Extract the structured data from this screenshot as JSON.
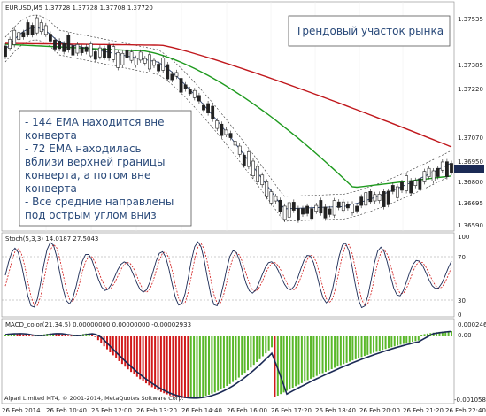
{
  "main": {
    "header": "EURUSD,M5  1.37728 1.37728 1.37708 1.37720",
    "annotation_top": "Трендовый участок рынка",
    "annotation_lines": [
      "- 144 EMA находится вне",
      "конверта",
      "- 72 EMA находилась",
      "вблизи верхней границы",
      "конверта, а потом вне",
      "конверта",
      "- Все средние направлены",
      "под острым углом вниз"
    ],
    "price_ticks": [
      "1.37535",
      "1.37385",
      "1.37220",
      "1.37070",
      "1.36950",
      "1.36800",
      "1.36695",
      "1.36590"
    ]
  },
  "stoch": {
    "header": "Stoch(5,3,3) 14.0187 27.5043",
    "ticks": [
      "100",
      "70",
      "30",
      "0"
    ]
  },
  "macd": {
    "header": "MACD_color(21,34,5) 0.00000000 0.00000000 -0.00002933",
    "ticks": [
      "0.000246",
      "0.00",
      "-0.001058"
    ],
    "footer": "Alpari Limited MT4, © 2001-2014, MetaQuotes Software Corp."
  },
  "time_labels": [
    "26 Feb 2014",
    "26 Feb 10:40",
    "26 Feb 12:00",
    "26 Feb 13:20",
    "26 Feb 14:40",
    "26 Feb 16:00",
    "26 Feb 17:20",
    "26 Feb 18:40",
    "26 Feb 20:00",
    "26 Feb 21:20",
    "26 Feb 22:40"
  ],
  "colors": {
    "ema144": "#c0171c",
    "ema72": "#1e9a1e",
    "ema_fast": "#2a3f6b",
    "envelope": "#333333",
    "macd_up": "#5ab82a",
    "macd_down": "#d11a1a",
    "stoch_main": "#1b2a55",
    "stoch_signal": "#d11a1a"
  }
}
